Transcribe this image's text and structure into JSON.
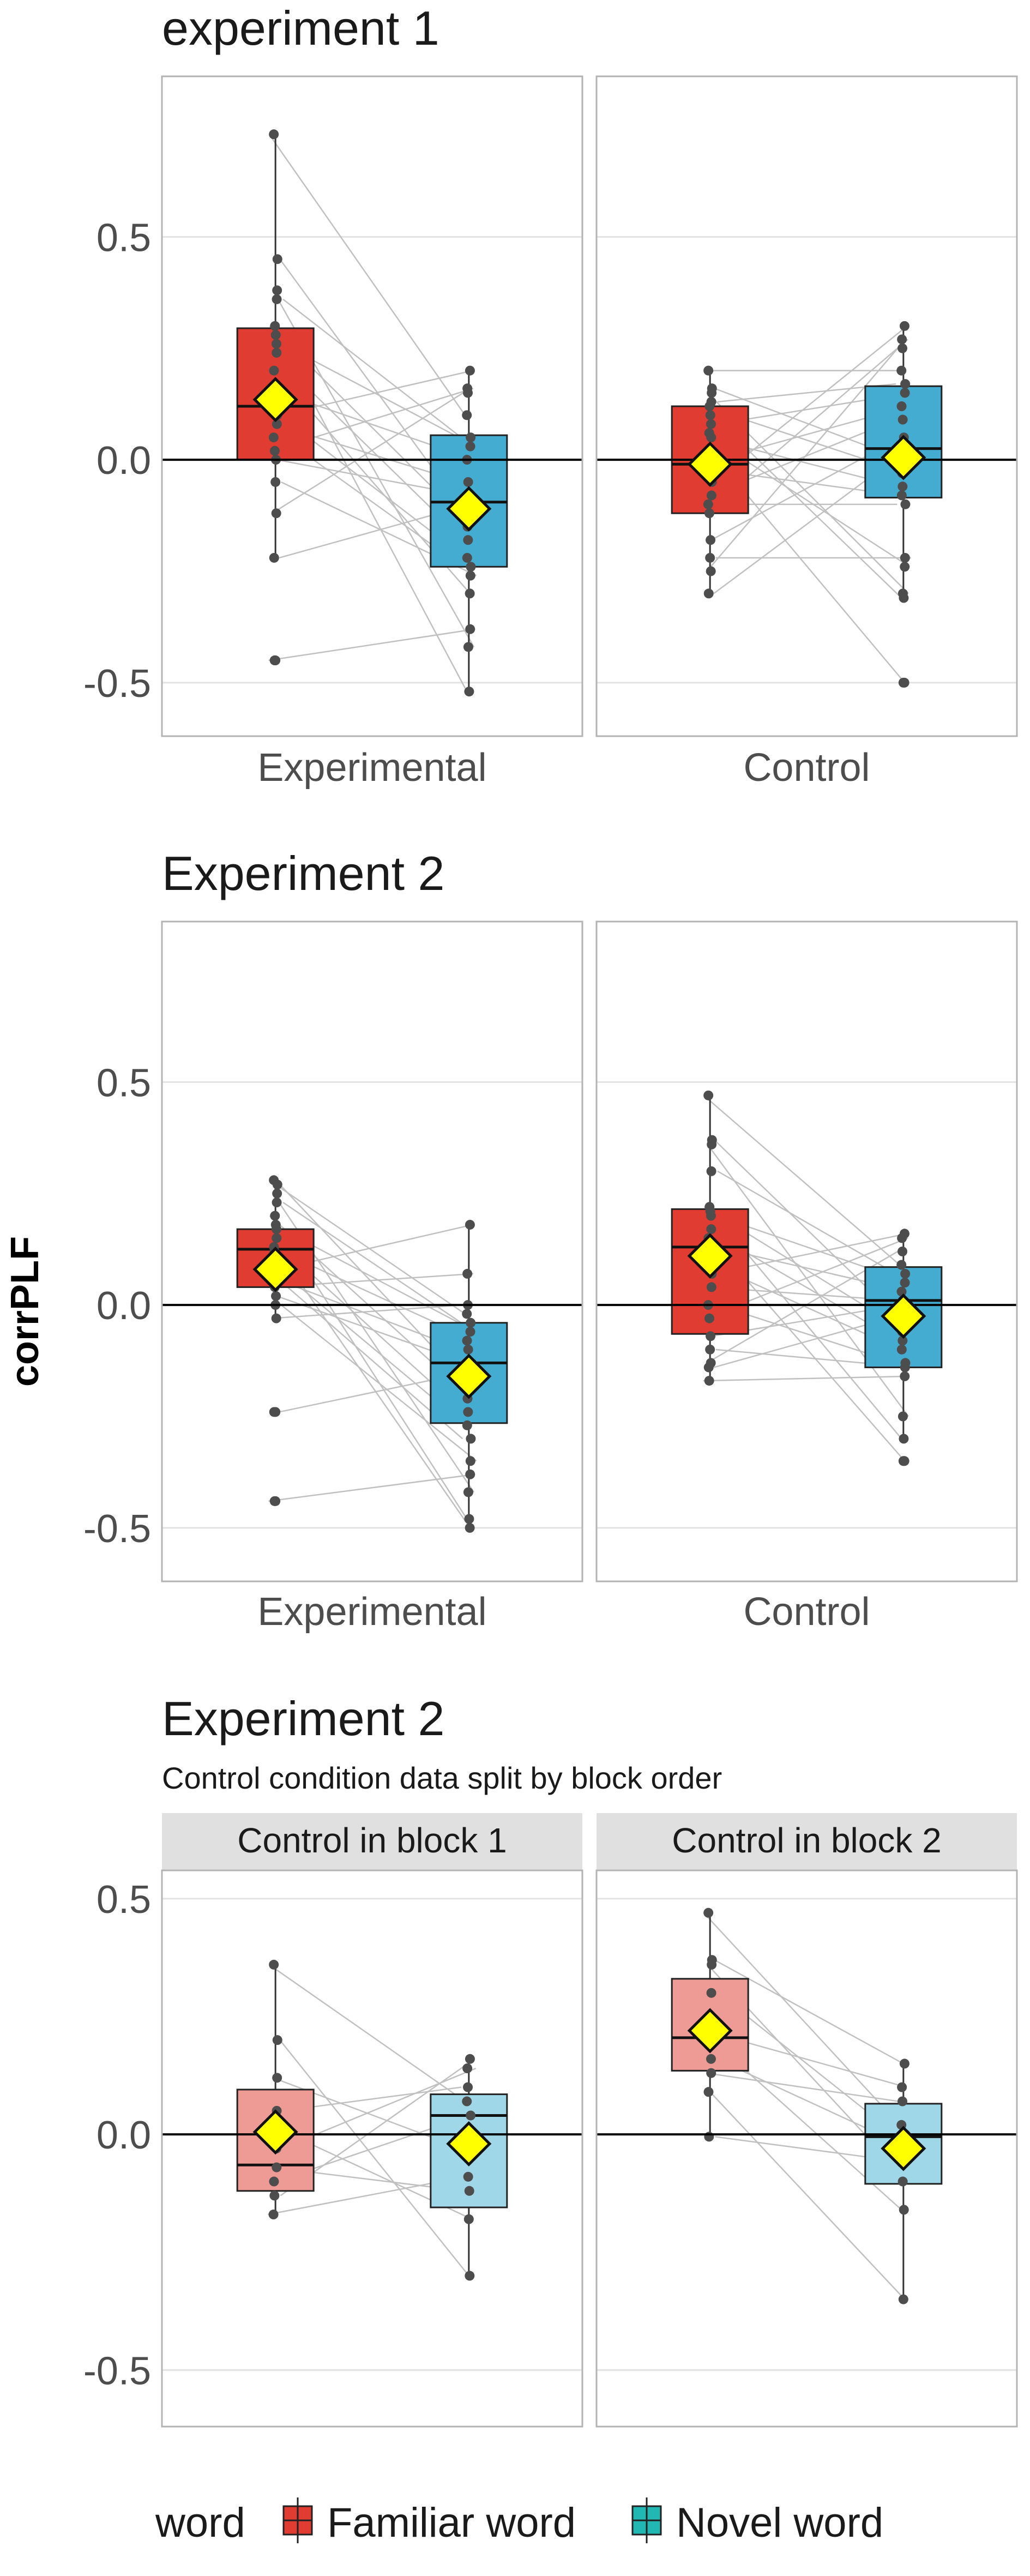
{
  "y_axis_label": "corrPLF",
  "legend": {
    "title": "word",
    "items": [
      {
        "label": "Familiar word",
        "color": "#e03c31"
      },
      {
        "label": "Novel word",
        "color": "#21b8b4"
      }
    ],
    "position": "bottom"
  },
  "colors": {
    "familiar": "#e03c31",
    "novel": "#44acd1",
    "familiar_light": "#ef9b95",
    "novel_light": "#9fd6e8",
    "mean_marker": "#ffff00",
    "point": "#4d4d4d",
    "line": "#c0c0c0",
    "grid": "#e3e3e3",
    "strip": "#e0e0e0"
  },
  "chart_data": [
    {
      "type": "box",
      "title": "experiment 1",
      "subtitle": "",
      "ylim": [
        -0.62,
        0.86
      ],
      "yticks": [
        -0.5,
        0.0,
        0.5
      ],
      "ytick_labels": [
        "-0.5",
        "0.0",
        "0.5"
      ],
      "grid": true,
      "facet_position": "bottom",
      "facets": [
        {
          "label": "Experimental",
          "series": [
            {
              "word": "Familiar word",
              "q1": 0.0,
              "median": 0.12,
              "q3": 0.295,
              "min": -0.22,
              "max": 0.73,
              "outliers": [
                -0.45
              ],
              "mean": 0.135,
              "points": [
                0.73,
                0.45,
                0.38,
                0.36,
                0.3,
                0.28,
                0.26,
                0.24,
                0.2,
                0.15,
                0.12,
                0.1,
                0.08,
                0.05,
                0.02,
                0.0,
                -0.05,
                -0.12,
                -0.22,
                -0.45
              ]
            },
            {
              "word": "Novel word",
              "q1": -0.24,
              "median": -0.095,
              "q3": 0.055,
              "min": -0.52,
              "max": 0.205,
              "outliers": [],
              "mean": -0.11,
              "points": [
                0.2,
                0.16,
                0.15,
                0.1,
                0.05,
                0.03,
                0.0,
                -0.05,
                -0.08,
                -0.1,
                -0.13,
                -0.15,
                -0.18,
                -0.22,
                -0.24,
                -0.26,
                -0.38,
                -0.42,
                -0.52,
                -0.3
              ]
            }
          ]
        },
        {
          "label": "Control",
          "series": [
            {
              "word": "Familiar word",
              "q1": -0.12,
              "median": -0.01,
              "q3": 0.12,
              "min": -0.3,
              "max": 0.2,
              "outliers": [],
              "mean": -0.01,
              "points": [
                0.2,
                0.16,
                0.15,
                0.13,
                0.12,
                0.1,
                0.08,
                0.05,
                0.02,
                0.0,
                -0.02,
                -0.05,
                -0.08,
                -0.1,
                -0.12,
                -0.18,
                -0.22,
                -0.25,
                -0.3,
                0.06
              ]
            },
            {
              "word": "Novel word",
              "q1": -0.085,
              "median": 0.025,
              "q3": 0.165,
              "min": -0.31,
              "max": 0.3,
              "outliers": [
                -0.5
              ],
              "mean": 0.005,
              "points": [
                0.3,
                0.27,
                0.25,
                0.2,
                0.17,
                0.15,
                0.12,
                0.09,
                0.05,
                0.02,
                0.0,
                -0.03,
                -0.06,
                -0.08,
                -0.1,
                -0.22,
                -0.24,
                -0.3,
                -0.31,
                -0.5
              ]
            }
          ]
        }
      ]
    },
    {
      "type": "box",
      "title": "Experiment 2",
      "subtitle": "",
      "ylim": [
        -0.62,
        0.86
      ],
      "yticks": [
        -0.5,
        0.0,
        0.5
      ],
      "ytick_labels": [
        "-0.5",
        "0.0",
        "0.5"
      ],
      "grid": true,
      "facet_position": "bottom",
      "facets": [
        {
          "label": "Experimental",
          "series": [
            {
              "word": "Familiar word",
              "q1": 0.04,
              "median": 0.125,
              "q3": 0.17,
              "min": -0.03,
              "max": 0.28,
              "outliers": [
                -0.24,
                -0.44
              ],
              "mean": 0.08,
              "points": [
                0.28,
                0.27,
                0.25,
                0.23,
                0.2,
                0.18,
                0.17,
                0.15,
                0.13,
                0.12,
                0.1,
                0.08,
                0.06,
                0.05,
                0.04,
                0.02,
                0.0,
                -0.03,
                -0.24,
                -0.44
              ]
            },
            {
              "word": "Novel word",
              "q1": -0.265,
              "median": -0.13,
              "q3": -0.04,
              "min": -0.5,
              "max": 0.18,
              "outliers": [],
              "mean": -0.16,
              "points": [
                0.18,
                0.07,
                0.0,
                -0.02,
                -0.04,
                -0.06,
                -0.08,
                -0.1,
                -0.13,
                -0.15,
                -0.18,
                -0.21,
                -0.24,
                -0.27,
                -0.3,
                -0.35,
                -0.38,
                -0.42,
                -0.48,
                -0.5
              ]
            }
          ]
        },
        {
          "label": "Control",
          "series": [
            {
              "word": "Familiar word",
              "q1": -0.065,
              "median": 0.13,
              "q3": 0.215,
              "min": -0.17,
              "max": 0.47,
              "outliers": [],
              "mean": 0.11,
              "points": [
                0.47,
                0.37,
                0.36,
                0.3,
                0.22,
                0.21,
                0.2,
                0.17,
                0.15,
                0.13,
                0.1,
                0.07,
                0.04,
                0.0,
                -0.03,
                -0.07,
                -0.1,
                -0.13,
                -0.14,
                -0.17
              ]
            },
            {
              "word": "Novel word",
              "q1": -0.14,
              "median": 0.01,
              "q3": 0.085,
              "min": -0.3,
              "max": 0.16,
              "outliers": [
                -0.35
              ],
              "mean": -0.025,
              "points": [
                0.16,
                0.15,
                0.12,
                0.09,
                0.07,
                0.05,
                0.03,
                0.01,
                0.0,
                -0.02,
                -0.04,
                -0.06,
                -0.08,
                -0.1,
                -0.13,
                -0.14,
                -0.16,
                -0.25,
                -0.3,
                -0.35
              ]
            }
          ]
        }
      ]
    },
    {
      "type": "box",
      "title": "Experiment 2",
      "subtitle": "Control condition data split by block order",
      "ylim": [
        -0.62,
        0.56
      ],
      "yticks": [
        -0.5,
        0.0,
        0.5
      ],
      "ytick_labels": [
        "-0.5",
        "0.0",
        "0.5"
      ],
      "grid": true,
      "facet_position": "top",
      "facets": [
        {
          "label": "Control in block 1",
          "series": [
            {
              "word": "Familiar word",
              "q1": -0.12,
              "median": -0.065,
              "q3": 0.095,
              "min": -0.17,
              "max": 0.36,
              "outliers": [],
              "mean": 0.005,
              "points": [
                0.36,
                0.2,
                0.12,
                0.05,
                0.02,
                0.0,
                -0.03,
                -0.07,
                -0.1,
                -0.13,
                -0.17
              ]
            },
            {
              "word": "Novel word",
              "q1": -0.155,
              "median": 0.04,
              "q3": 0.085,
              "min": -0.3,
              "max": 0.16,
              "outliers": [],
              "mean": -0.02,
              "points": [
                0.16,
                0.14,
                0.1,
                0.07,
                0.04,
                0.0,
                -0.04,
                -0.09,
                -0.12,
                -0.18,
                -0.3
              ]
            }
          ]
        },
        {
          "label": "Control in block 2",
          "series": [
            {
              "word": "Familiar word",
              "q1": 0.135,
              "median": 0.205,
              "q3": 0.33,
              "min": -0.005,
              "max": 0.47,
              "outliers": [],
              "mean": 0.22,
              "points": [
                0.47,
                0.37,
                0.36,
                0.3,
                0.22,
                0.2,
                0.16,
                0.13,
                0.09,
                -0.005
              ]
            },
            {
              "word": "Novel word",
              "q1": -0.105,
              "median": -0.005,
              "q3": 0.065,
              "min": -0.35,
              "max": 0.15,
              "outliers": [],
              "mean": -0.03,
              "points": [
                0.15,
                0.1,
                0.07,
                0.02,
                0.0,
                -0.03,
                -0.06,
                -0.1,
                -0.16,
                -0.35
              ]
            }
          ]
        }
      ]
    }
  ]
}
